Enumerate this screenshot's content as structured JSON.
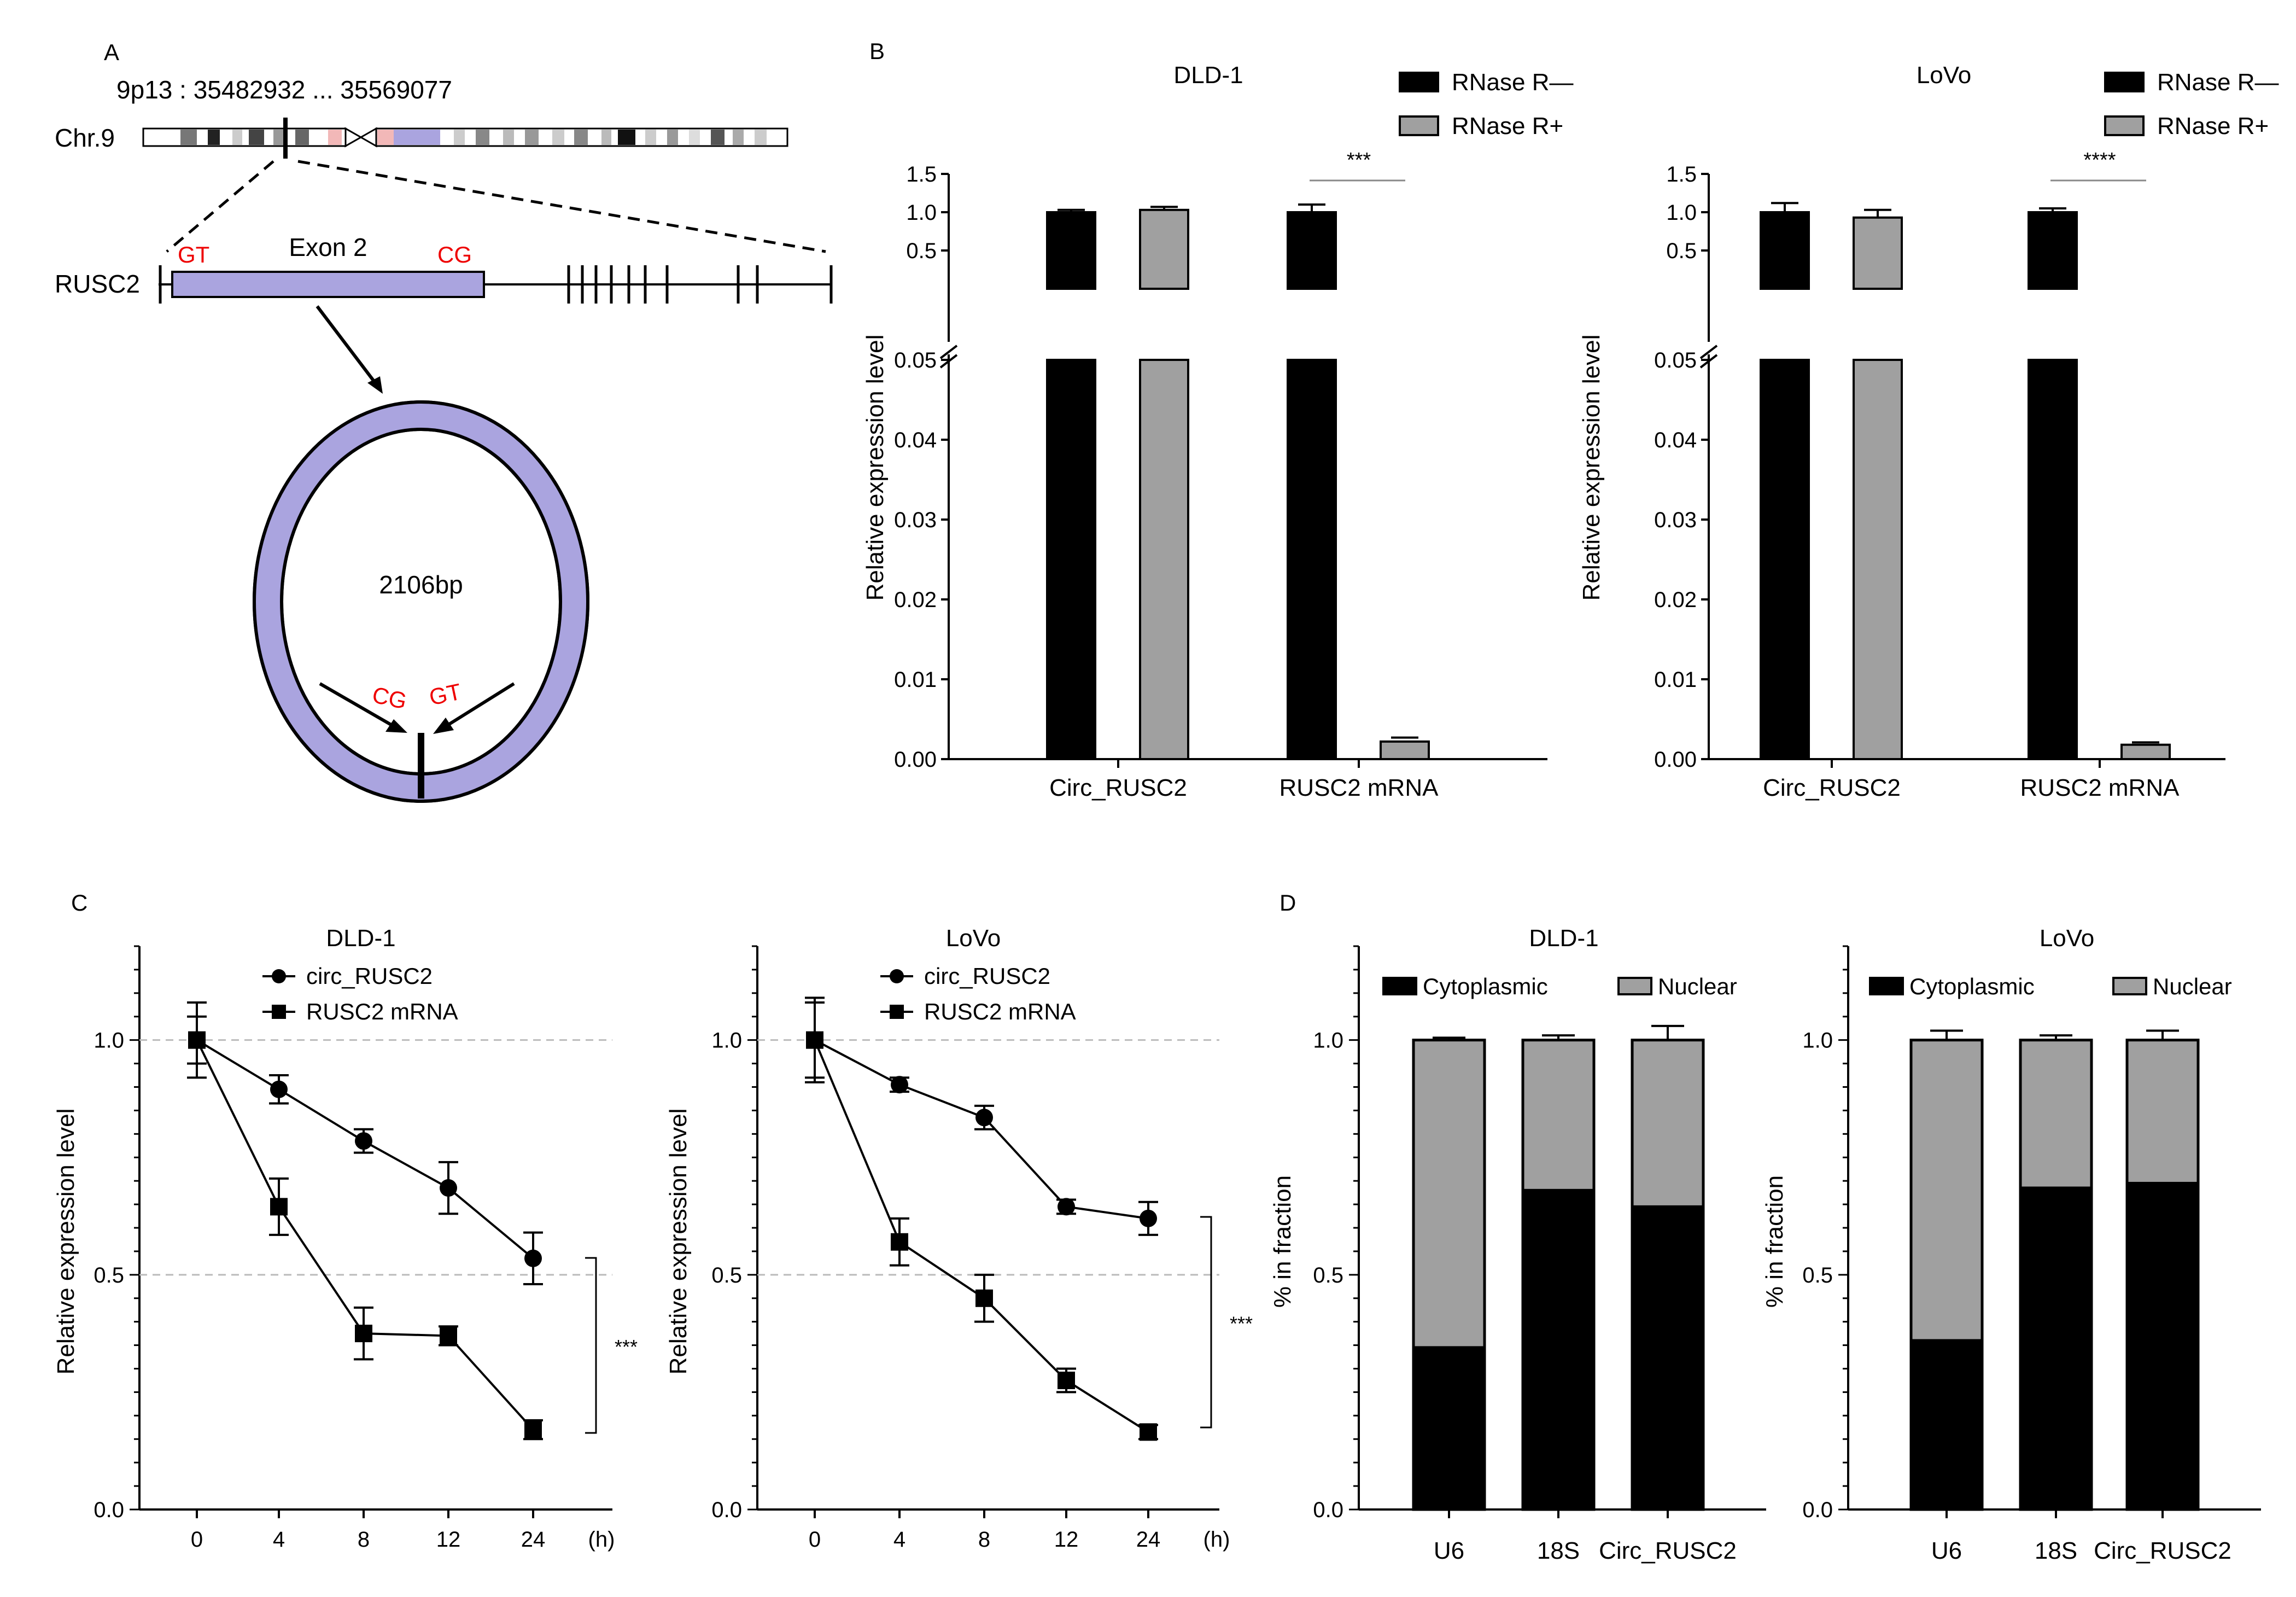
{
  "panels": {
    "a": {
      "letter": "A",
      "locus": "9p13 : 35482932 ... 35569077",
      "chromosome": "Chr.9",
      "gene": "RUSC2",
      "exon": "Exon 2",
      "left_site": "GT",
      "right_site": "CG",
      "circle_size": "2106bp",
      "circle_left_site": "CG",
      "circle_right_site": "GT"
    },
    "b": {
      "letter": "B"
    },
    "c": {
      "letter": "C"
    },
    "d": {
      "letter": "D"
    }
  },
  "chart_data": [
    {
      "id": "b-dld1",
      "type": "bar",
      "title": "DLD-1",
      "ylabel": "Relative expression level",
      "categories": [
        "Circ_RUSC2",
        "RUSC2 mRNA"
      ],
      "series": [
        {
          "name": "RNase R—",
          "color": "#000000",
          "values": [
            1.0,
            1.0
          ],
          "errors": [
            0.03,
            0.1
          ]
        },
        {
          "name": "RNase R+",
          "color": "#a0a0a0",
          "values": [
            1.03,
            0.0022
          ],
          "errors": [
            0.04,
            0.0005
          ]
        }
      ],
      "broken_axis": true,
      "ylim_lower": [
        0,
        0.05
      ],
      "ylim_upper": [
        0,
        1.5
      ],
      "yticks_lower": [
        "0.00",
        "0.01",
        "0.02",
        "0.03",
        "0.04",
        "0.05"
      ],
      "yticks_upper": [
        "0.5",
        "1.0",
        "1.5"
      ],
      "significance": {
        "category": "RUSC2 mRNA",
        "label": "***"
      },
      "legend": "top-right"
    },
    {
      "id": "b-lovo",
      "type": "bar",
      "title": "LoVo",
      "ylabel": "Relative expression level",
      "categories": [
        "Circ_RUSC2",
        "RUSC2 mRNA"
      ],
      "series": [
        {
          "name": "RNase R—",
          "color": "#000000",
          "values": [
            1.0,
            1.0
          ],
          "errors": [
            0.12,
            0.05
          ]
        },
        {
          "name": "RNase R+",
          "color": "#a0a0a0",
          "values": [
            0.93,
            0.0018
          ],
          "errors": [
            0.1,
            0.0003
          ]
        }
      ],
      "broken_axis": true,
      "ylim_lower": [
        0,
        0.05
      ],
      "ylim_upper": [
        0,
        1.5
      ],
      "yticks_lower": [
        "0.00",
        "0.01",
        "0.02",
        "0.03",
        "0.04",
        "0.05"
      ],
      "yticks_upper": [
        "0.5",
        "1.0",
        "1.5"
      ],
      "significance": {
        "category": "RUSC2 mRNA",
        "label": "****"
      },
      "legend": "top-right"
    },
    {
      "id": "c-dld1",
      "type": "line",
      "title": "DLD-1",
      "ylabel": "Relative expression level",
      "x_categories": [
        "0",
        "4",
        "8",
        "12",
        "24"
      ],
      "x_unit": "(h)",
      "ylim": [
        0,
        1.2
      ],
      "yticks": [
        "0.0",
        "0.5",
        "1.0"
      ],
      "gridlines": [
        0.5,
        1.0
      ],
      "series": [
        {
          "name": "circ_RUSC2",
          "marker": "circle",
          "values": [
            1.0,
            0.895,
            0.785,
            0.685,
            0.535
          ],
          "errors": [
            0.08,
            0.03,
            0.025,
            0.055,
            0.055
          ]
        },
        {
          "name": "RUSC2 mRNA",
          "marker": "square",
          "values": [
            1.0,
            0.645,
            0.375,
            0.37,
            0.17
          ],
          "errors": [
            0.05,
            0.06,
            0.055,
            0.02,
            0.02
          ]
        }
      ],
      "significance": "***",
      "legend": "top"
    },
    {
      "id": "c-lovo",
      "type": "line",
      "title": "LoVo",
      "ylabel": "Relative expression level",
      "x_categories": [
        "0",
        "4",
        "8",
        "12",
        "24"
      ],
      "x_unit": "(h)",
      "ylim": [
        0,
        1.2
      ],
      "yticks": [
        "0.0",
        "0.5",
        "1.0"
      ],
      "gridlines": [
        0.5,
        1.0
      ],
      "series": [
        {
          "name": "circ_RUSC2",
          "marker": "circle",
          "values": [
            1.0,
            0.905,
            0.835,
            0.645,
            0.62
          ],
          "errors": [
            0.09,
            0.015,
            0.025,
            0.015,
            0.035
          ]
        },
        {
          "name": "RUSC2 mRNA",
          "marker": "square",
          "values": [
            1.0,
            0.57,
            0.45,
            0.275,
            0.165
          ],
          "errors": [
            0.08,
            0.05,
            0.05,
            0.025,
            0.015
          ]
        }
      ],
      "significance": "***",
      "legend": "top"
    },
    {
      "id": "d-dld1",
      "type": "bar",
      "stacked": true,
      "title": "DLD-1",
      "ylabel": "% in fraction",
      "categories": [
        "U6",
        "18S",
        "Circ_RUSC2"
      ],
      "ylim": [
        0,
        1.2
      ],
      "yticks": [
        "0.0",
        "0.5",
        "1.0"
      ],
      "series": [
        {
          "name": "Cytoplasmic",
          "color": "#000000",
          "values": [
            0.345,
            0.68,
            0.645
          ],
          "errors": [
            0.005,
            0.01,
            0.035
          ]
        },
        {
          "name": "Nuclear",
          "color": "#a0a0a0",
          "values": [
            0.655,
            0.32,
            0.355
          ],
          "errors": [
            0.005,
            0.01,
            0.03
          ]
        }
      ],
      "legend": "top"
    },
    {
      "id": "d-lovo",
      "type": "bar",
      "stacked": true,
      "title": "LoVo",
      "ylabel": "% in fraction",
      "categories": [
        "U6",
        "18S",
        "Circ_RUSC2"
      ],
      "ylim": [
        0,
        1.2
      ],
      "yticks": [
        "0.0",
        "0.5",
        "1.0"
      ],
      "series": [
        {
          "name": "Cytoplasmic",
          "color": "#000000",
          "values": [
            0.36,
            0.685,
            0.695
          ],
          "errors": [
            0.015,
            0.005,
            0.015
          ]
        },
        {
          "name": "Nuclear",
          "color": "#a0a0a0",
          "values": [
            0.64,
            0.315,
            0.305
          ],
          "errors": [
            0.02,
            0.01,
            0.02
          ]
        }
      ],
      "legend": "top"
    }
  ]
}
